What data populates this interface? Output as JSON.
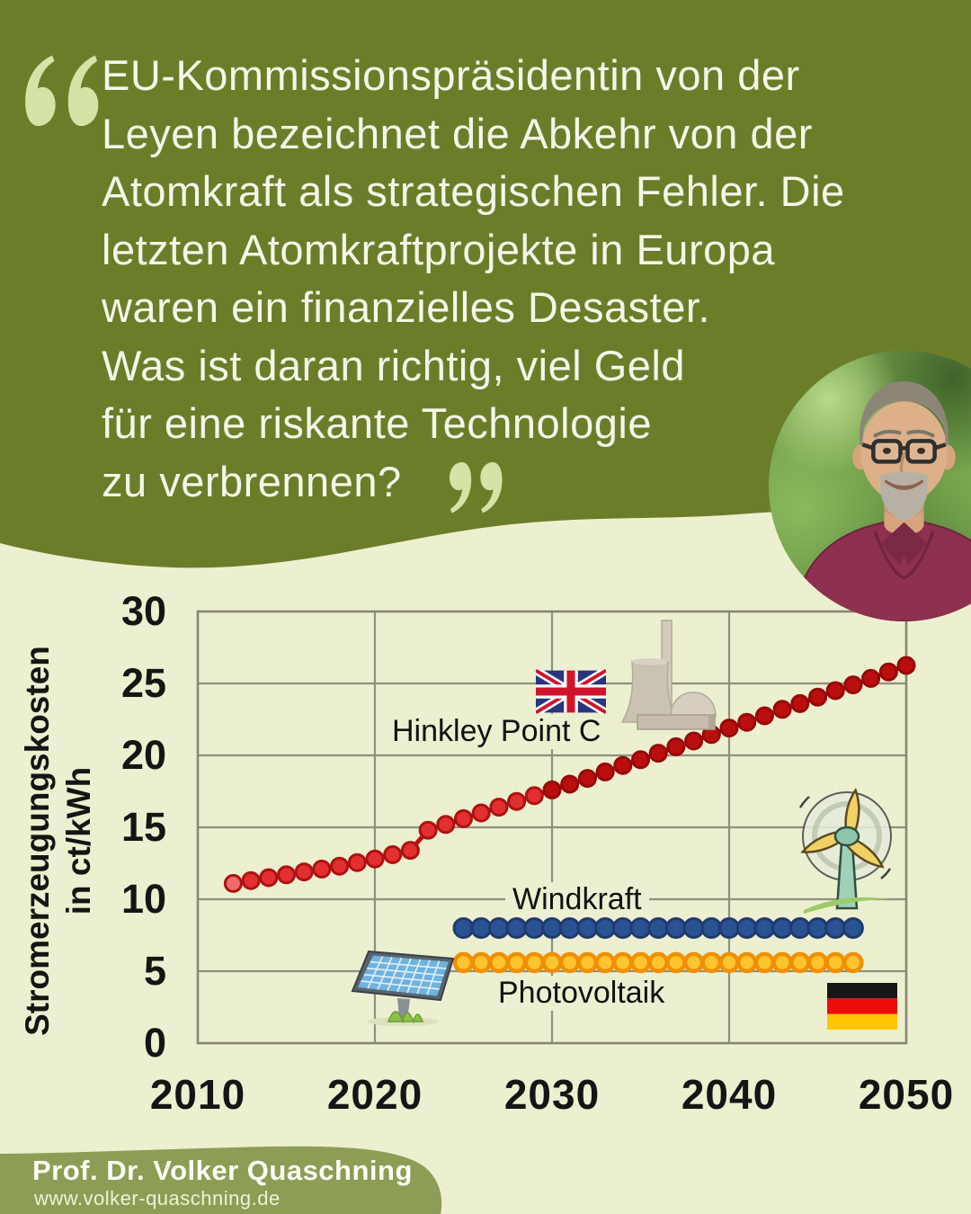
{
  "palette": {
    "header_green": "#6c7d2a",
    "body_bg": "#edf0d0",
    "quote_mark": "#d3e4a6",
    "quote_text": "#f4f7e8",
    "footer_green": "#8d9d55",
    "grid": "#8e907c",
    "axis_text": "#151515"
  },
  "quote": {
    "lines": [
      "EU-Kommissionspräsidentin von der",
      "Leyen bezeichnet die Abkehr von der",
      "Atomkraft als strategischen Fehler. Die",
      "letzten Atomkraftprojekte in Europa",
      "waren ein finanzielles Desaster.",
      "Was ist daran richtig, viel Geld",
      "für eine riskante Technologie",
      "zu verbrennen?"
    ]
  },
  "footer": {
    "name": "Prof. Dr. Volker Quaschning",
    "url": "www.volker-quaschning.de"
  },
  "icons": {
    "open_quote": "open-quote-icon",
    "close_quote": "close-quote-icon",
    "uk_flag": "uk-flag-icon",
    "germany_flag": "germany-flag-icon",
    "nuclear_plant": "nuclear-plant-icon",
    "wind_turbine": "wind-turbine-icon",
    "solar_panel": "solar-panel-icon",
    "portrait": "portrait-photo"
  },
  "chart_data": {
    "type": "line",
    "xlim": [
      2010,
      2050
    ],
    "ylim": [
      0,
      30
    ],
    "x_ticks": [
      2010,
      2020,
      2030,
      2040,
      2050
    ],
    "y_ticks": [
      0,
      5,
      10,
      15,
      20,
      25,
      30
    ],
    "ylabel_lines": [
      "Stromerzeugungskosten",
      "in ct/kWh"
    ],
    "grid": true,
    "legend_position": "inline-labels",
    "series": [
      {
        "name": "Hinkley Point C",
        "start_year": 2012,
        "values": [
          11.1,
          11.3,
          11.5,
          11.7,
          11.9,
          12.1,
          12.3,
          12.55,
          12.8,
          13.1,
          13.4,
          14.8,
          15.2,
          15.6,
          16.0,
          16.4,
          16.8,
          17.2,
          17.6,
          18.0,
          18.4,
          18.85,
          19.3,
          19.7,
          20.15,
          20.6,
          21.0,
          21.45,
          21.9,
          22.3,
          22.75,
          23.2,
          23.6,
          24.05,
          24.5,
          24.9,
          25.35,
          25.8,
          26.25
        ],
        "line_color": "#c01414",
        "dot_fill": "#e23030",
        "dot_stroke": "#ae1111",
        "dot_fill_late": "#bb0f0f",
        "dot_stroke_late": "#970808",
        "late_from_year": 2030,
        "first_point_color": "#f06a6a",
        "dot_radius": 9
      },
      {
        "name": "Windkraft",
        "start_year": 2025,
        "values": [
          8,
          8,
          8,
          8,
          8,
          8,
          8,
          8,
          8,
          8,
          8,
          8,
          8,
          8,
          8,
          8,
          8,
          8,
          8,
          8,
          8,
          8,
          8
        ],
        "line_color": "#2a5292",
        "dot_fill": "#2a5292",
        "dot_stroke": "#1d3c6e",
        "dot_radius": 10.5
      },
      {
        "name": "Photovoltaik",
        "start_year": 2025,
        "values": [
          5.6,
          5.6,
          5.6,
          5.6,
          5.6,
          5.6,
          5.6,
          5.6,
          5.6,
          5.6,
          5.6,
          5.6,
          5.6,
          5.6,
          5.6,
          5.6,
          5.6,
          5.6,
          5.6,
          5.6,
          5.6,
          5.6,
          5.6
        ],
        "line_color": "#f09000",
        "dot_fill": "#ffc52e",
        "dot_stroke": "#f09000",
        "dot_radius": 9.5
      }
    ]
  }
}
